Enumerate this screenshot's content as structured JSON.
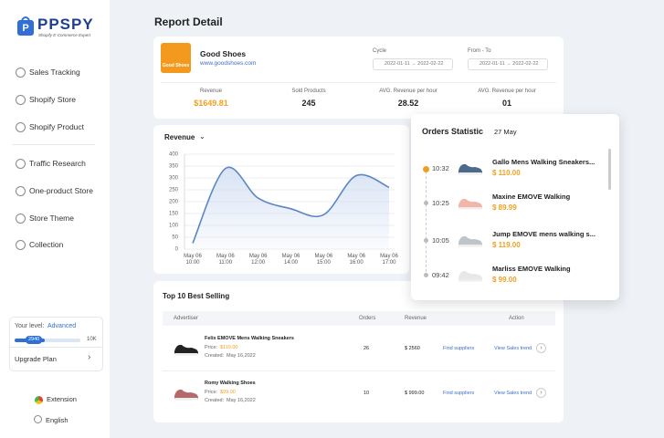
{
  "sidebar": {
    "logo": "PPSPY",
    "tagline": "Shopify E-Commerce Expert",
    "nav": [
      "Sales Tracking",
      "Shopify Store",
      "Shopify Product",
      "Traffic Research",
      "One-product Store",
      "Store Theme",
      "Collection"
    ],
    "level_label": "Your level:",
    "level": "Advanced",
    "progress": "2940",
    "progress_max": "10K",
    "upgrade": "Upgrade Plan",
    "extension": "Extension",
    "language": "English"
  },
  "report": {
    "title": "Report Detail",
    "logo_text": "Good Shoes",
    "store_name": "Good Shoes",
    "store_url": "www.goodshoes.com",
    "cycle_label": "Cycle",
    "cycle_from": "2022-01-11",
    "cycle_to": "2022-02-22",
    "range_label": "From - To",
    "range_from": "2022-01-11",
    "range_to": "2022-02-22",
    "metrics": [
      {
        "label": "Revenue",
        "value": "$1649.81"
      },
      {
        "label": "Sold Products",
        "value": "245"
      },
      {
        "label": "AVG. Revenue per hour",
        "value": "28.52"
      },
      {
        "label": "AVG. Revenue per hour",
        "value": "01"
      }
    ]
  },
  "chart_data": {
    "type": "line",
    "title": "Revenue",
    "categories": [
      "May 06 10:00",
      "May 06 11:00",
      "May 06 12:00",
      "May 06 14:00",
      "May 06 15:00",
      "May 06 16:00",
      "May 06 17:00"
    ],
    "values": [
      25,
      340,
      215,
      170,
      145,
      310,
      260
    ],
    "color": "#5b86c5",
    "ylim": [
      0,
      400
    ],
    "yticks": [
      0,
      50,
      100,
      150,
      200,
      250,
      300,
      350,
      400
    ],
    "grid": true
  },
  "orders": {
    "title": "Orders Statistic",
    "date": "27 May",
    "items": [
      {
        "time": "10:32",
        "name": "Gallo Mens Walking Sneakers...",
        "price": "$ 110.00"
      },
      {
        "time": "10:25",
        "name": "Maxine EMOVE Walking",
        "price": "$ 89.99"
      },
      {
        "time": "10:05",
        "name": "Jump EMOVE mens walking s...",
        "price": "$ 119.00"
      },
      {
        "time": "09:42",
        "name": "Marliss EMOVE Walking",
        "price": "$ 99.00"
      }
    ]
  },
  "top_selling": {
    "title": "Top 10 Best Selling",
    "headers": [
      "Advertiser",
      "Orders",
      "Revenue",
      "Action"
    ],
    "price_label": "Price:",
    "created_label": "Created:",
    "rows": [
      {
        "name": "Felix EMOVE Mens Walking Sneakers",
        "price": "$119.00",
        "created": "May 16,2022",
        "orders": "26",
        "revenue": "$ 2560",
        "find": "Find suppliers",
        "trend": "View Sales trend"
      },
      {
        "name": "Romy Walking Shoes",
        "price": "$99.00",
        "created": "May 16,2022",
        "orders": "10",
        "revenue": "$ 999.00",
        "find": "Find suppliers",
        "trend": "View Sales trend"
      }
    ]
  }
}
